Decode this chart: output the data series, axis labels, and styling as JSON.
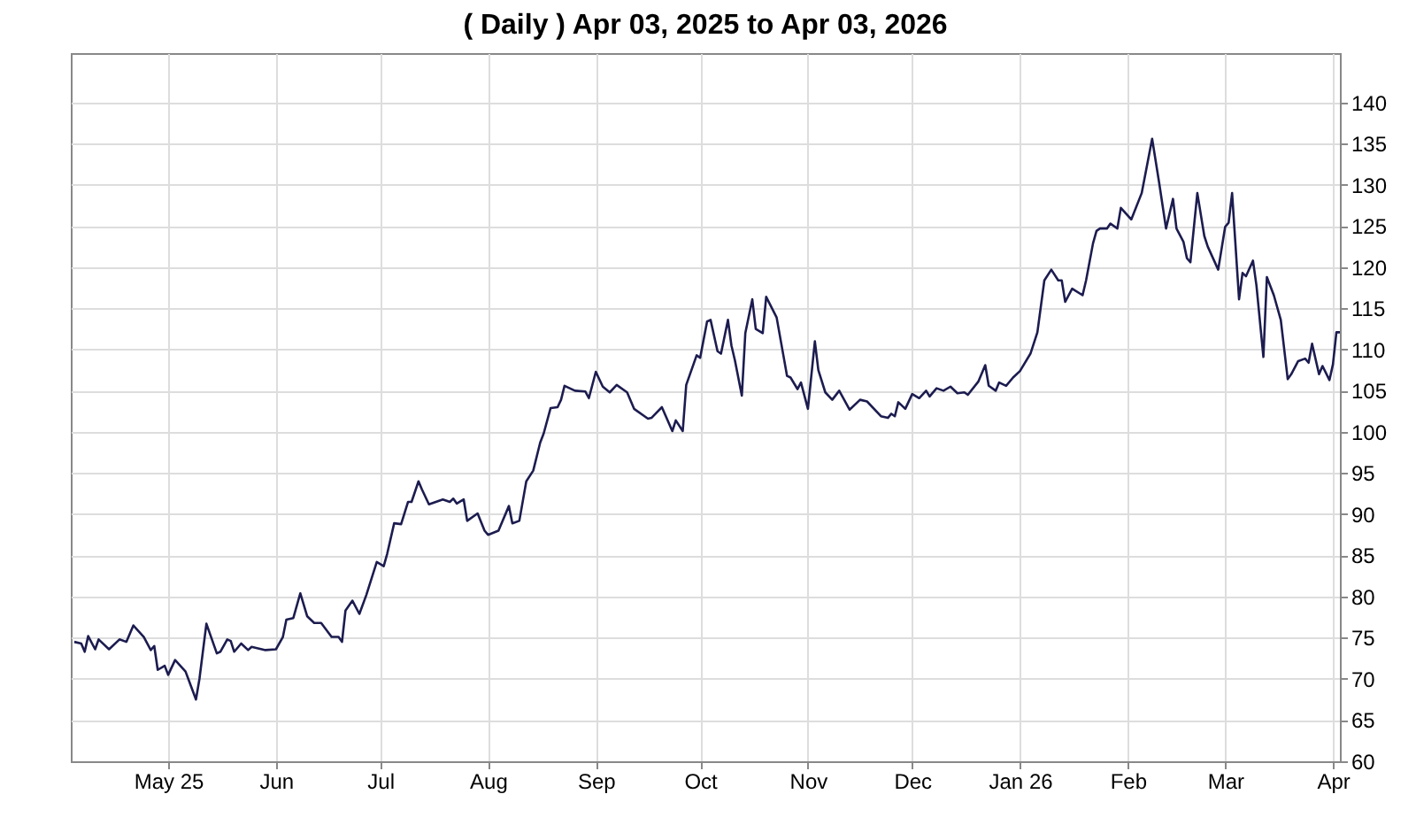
{
  "chart_data": {
    "type": "line",
    "title": "( Daily ) Apr 03, 2025 to Apr 03, 2026",
    "xlim": [
      "2025-04-03",
      "2026-04-03"
    ],
    "xticks": [
      {
        "value": "2025-05-01",
        "label": "May 25"
      },
      {
        "value": "2025-06-01",
        "label": "Jun"
      },
      {
        "value": "2025-07-01",
        "label": "Jul"
      },
      {
        "value": "2025-08-01",
        "label": "Aug"
      },
      {
        "value": "2025-09-01",
        "label": "Sep"
      },
      {
        "value": "2025-10-01",
        "label": "Oct"
      },
      {
        "value": "2025-11-01",
        "label": "Nov"
      },
      {
        "value": "2025-12-01",
        "label": "Dec"
      },
      {
        "value": "2026-01-01",
        "label": "Jan 26"
      },
      {
        "value": "2026-02-01",
        "label": "Feb"
      },
      {
        "value": "2026-03-01",
        "label": "Mar"
      },
      {
        "value": "2026-04-01",
        "label": "Apr"
      }
    ],
    "ylim": [
      60,
      146
    ],
    "yticks": [
      60,
      65,
      70,
      75,
      80,
      85,
      90,
      95,
      100,
      105,
      110,
      115,
      120,
      125,
      130,
      135,
      140
    ],
    "grid": true,
    "series": [
      {
        "color": "#1c1c50",
        "x": [
          "2025-04-04",
          "2025-04-06",
          "2025-04-07",
          "2025-04-08",
          "2025-04-10",
          "2025-04-11",
          "2025-04-14",
          "2025-04-17",
          "2025-04-19",
          "2025-04-21",
          "2025-04-24",
          "2025-04-26",
          "2025-04-27",
          "2025-04-28",
          "2025-04-30",
          "2025-05-01",
          "2025-05-03",
          "2025-05-06",
          "2025-05-09",
          "2025-05-10",
          "2025-05-12",
          "2025-05-15",
          "2025-05-16",
          "2025-05-18",
          "2025-05-19",
          "2025-05-20",
          "2025-05-22",
          "2025-05-24",
          "2025-05-25",
          "2025-05-29",
          "2025-06-01",
          "2025-06-03",
          "2025-06-04",
          "2025-06-06",
          "2025-06-08",
          "2025-06-10",
          "2025-06-12",
          "2025-06-14",
          "2025-06-17",
          "2025-06-19",
          "2025-06-20",
          "2025-06-21",
          "2025-06-23",
          "2025-06-25",
          "2025-06-27",
          "2025-06-30",
          "2025-07-02",
          "2025-07-03",
          "2025-07-05",
          "2025-07-07",
          "2025-07-09",
          "2025-07-10",
          "2025-07-12",
          "2025-07-13",
          "2025-07-15",
          "2025-07-17",
          "2025-07-19",
          "2025-07-21",
          "2025-07-22",
          "2025-07-23",
          "2025-07-25",
          "2025-07-26",
          "2025-07-29",
          "2025-07-31",
          "2025-08-01",
          "2025-08-04",
          "2025-08-07",
          "2025-08-08",
          "2025-08-10",
          "2025-08-12",
          "2025-08-14",
          "2025-08-16",
          "2025-08-17",
          "2025-08-19",
          "2025-08-21",
          "2025-08-22",
          "2025-08-23",
          "2025-08-26",
          "2025-08-29",
          "2025-08-30",
          "2025-09-01",
          "2025-09-03",
          "2025-09-05",
          "2025-09-07",
          "2025-09-10",
          "2025-09-12",
          "2025-09-16",
          "2025-09-17",
          "2025-09-20",
          "2025-09-23",
          "2025-09-24",
          "2025-09-26",
          "2025-09-27",
          "2025-09-30",
          "2025-10-01",
          "2025-10-03",
          "2025-10-04",
          "2025-10-06",
          "2025-10-07",
          "2025-10-09",
          "2025-10-10",
          "2025-10-11",
          "2025-10-13",
          "2025-10-14",
          "2025-10-16",
          "2025-10-17",
          "2025-10-19",
          "2025-10-20",
          "2025-10-23",
          "2025-10-26",
          "2025-10-27",
          "2025-10-29",
          "2025-10-30",
          "2025-11-01",
          "2025-11-03",
          "2025-11-04",
          "2025-11-06",
          "2025-11-08",
          "2025-11-10",
          "2025-11-13",
          "2025-11-16",
          "2025-11-18",
          "2025-11-22",
          "2025-11-24",
          "2025-11-25",
          "2025-11-26",
          "2025-11-27",
          "2025-11-29",
          "2025-12-01",
          "2025-12-03",
          "2025-12-05",
          "2025-12-06",
          "2025-12-08",
          "2025-12-10",
          "2025-12-12",
          "2025-12-14",
          "2025-12-16",
          "2025-12-17",
          "2025-12-20",
          "2025-12-22",
          "2025-12-23",
          "2025-12-25",
          "2025-12-26",
          "2025-12-28",
          "2025-12-30",
          "2026-01-01",
          "2026-01-04",
          "2026-01-06",
          "2026-01-08",
          "2026-01-10",
          "2026-01-12",
          "2026-01-13",
          "2026-01-14",
          "2026-01-16",
          "2026-01-19",
          "2026-01-20",
          "2026-01-22",
          "2026-01-23",
          "2026-01-24",
          "2026-01-26",
          "2026-01-27",
          "2026-01-29",
          "2026-01-30",
          "2026-02-02",
          "2026-02-05",
          "2026-02-08",
          "2026-02-10",
          "2026-02-12",
          "2026-02-14",
          "2026-02-15",
          "2026-02-17",
          "2026-02-18",
          "2026-02-19",
          "2026-02-21",
          "2026-02-23",
          "2026-02-24",
          "2026-02-27",
          "2026-03-01",
          "2026-03-02",
          "2026-03-03",
          "2026-03-05",
          "2026-03-06",
          "2026-03-07",
          "2026-03-09",
          "2026-03-10",
          "2026-03-12",
          "2026-03-13",
          "2026-03-15",
          "2026-03-17",
          "2026-03-19",
          "2026-03-20",
          "2026-03-22",
          "2026-03-24",
          "2026-03-25",
          "2026-03-26",
          "2026-03-28",
          "2026-03-29",
          "2026-03-31",
          "2026-04-01",
          "2026-04-02",
          "2026-04-03"
        ],
        "values": [
          74.5,
          74.3,
          73.3,
          75.2,
          73.6,
          74.8,
          73.6,
          74.8,
          74.5,
          76.5,
          75.1,
          73.5,
          74.0,
          71.1,
          71.6,
          70.5,
          72.3,
          70.9,
          67.5,
          70.0,
          76.7,
          73.1,
          73.3,
          74.8,
          74.6,
          73.3,
          74.3,
          73.5,
          73.9,
          73.5,
          73.6,
          75.1,
          77.2,
          77.4,
          80.4,
          77.6,
          76.8,
          76.8,
          75.1,
          75.1,
          74.5,
          78.3,
          79.5,
          77.9,
          80.2,
          84.2,
          83.7,
          85.2,
          88.9,
          88.8,
          91.5,
          91.5,
          94.0,
          93.0,
          91.2,
          91.5,
          91.8,
          91.5,
          91.9,
          91.3,
          91.8,
          89.2,
          90.1,
          88.0,
          87.5,
          88.0,
          91.0,
          88.9,
          89.2,
          94.0,
          95.3,
          98.7,
          99.8,
          102.9,
          103.0,
          103.9,
          105.6,
          105.0,
          104.9,
          104.1,
          107.3,
          105.5,
          104.8,
          105.7,
          104.8,
          102.8,
          101.6,
          101.7,
          103.0,
          100.1,
          101.4,
          100.1,
          105.7,
          109.3,
          109.0,
          113.4,
          113.6,
          109.8,
          109.5,
          113.6,
          110.5,
          108.7,
          104.4,
          112.0,
          116.1,
          112.5,
          112.0,
          116.4,
          113.9,
          106.8,
          106.6,
          105.2,
          106.0,
          102.8,
          111.0,
          107.5,
          104.8,
          103.9,
          105.0,
          102.7,
          103.9,
          103.7,
          101.9,
          101.7,
          102.2,
          101.9,
          103.6,
          102.8,
          104.6,
          104.1,
          105.0,
          104.3,
          105.3,
          105.0,
          105.5,
          104.7,
          104.8,
          104.5,
          106.1,
          108.1,
          105.6,
          105.0,
          106.0,
          105.6,
          106.6,
          107.4,
          109.5,
          112.1,
          118.4,
          119.7,
          118.4,
          118.4,
          115.8,
          117.4,
          116.6,
          118.4,
          122.9,
          124.4,
          124.7,
          124.7,
          125.3,
          124.7,
          127.2,
          125.8,
          129.0,
          135.6,
          130.3,
          124.7,
          128.3,
          124.7,
          123.1,
          121.1,
          120.6,
          129.0,
          123.8,
          122.5,
          119.7,
          124.9,
          125.4,
          129.0,
          116.1,
          119.3,
          118.9,
          120.8,
          117.8,
          109.1,
          118.8,
          116.6,
          113.6,
          106.4,
          107.0,
          108.6,
          108.9,
          108.4,
          110.7,
          107.0,
          108.0,
          106.3,
          108.2,
          112.1,
          112.1
        ]
      }
    ]
  }
}
